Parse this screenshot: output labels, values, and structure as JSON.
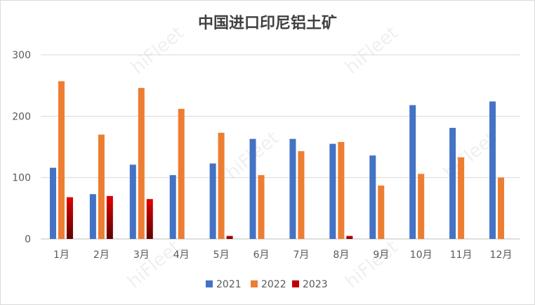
{
  "watermark": "hiFleet",
  "chart_data": {
    "type": "bar",
    "title": "中国进口印尼铝土矿",
    "categories": [
      "1月",
      "2月",
      "3月",
      "4月",
      "5月",
      "6月",
      "7月",
      "8月",
      "9月",
      "10月",
      "11月",
      "12月"
    ],
    "series": [
      {
        "name": "2021",
        "color": "#4472c4",
        "values": [
          116,
          73,
          121,
          104,
          123,
          163,
          163,
          155,
          136,
          218,
          181,
          224
        ]
      },
      {
        "name": "2022",
        "color": "#ed7d31",
        "values": [
          257,
          170,
          246,
          212,
          173,
          104,
          143,
          158,
          87,
          106,
          133,
          100
        ]
      },
      {
        "name": "2023",
        "color": "#c00000",
        "values": [
          68,
          70,
          65,
          null,
          5,
          null,
          null,
          5,
          null,
          null,
          null,
          null
        ]
      }
    ],
    "ylim": [
      0,
      300
    ],
    "yticks": [
      0,
      100,
      200,
      300
    ],
    "grid": true,
    "legend": "bottom"
  }
}
